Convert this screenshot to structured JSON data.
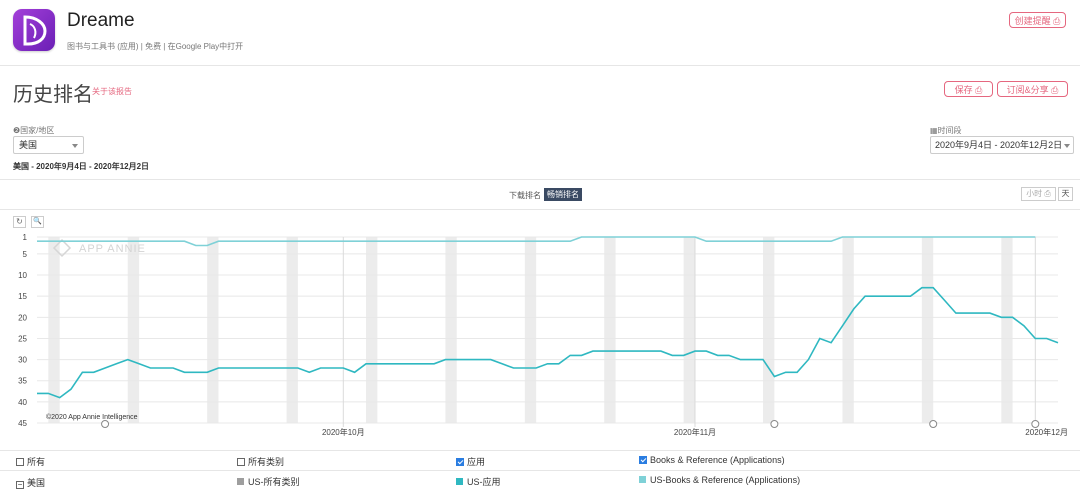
{
  "app": {
    "name": "Dreame",
    "meta": "图书与工具书 (应用) | 免费 | 在Google Play中打开",
    "create_alert_label": "创建提醒 ⎙"
  },
  "page": {
    "title": "历史排名",
    "about_label": "关于该报告",
    "save_label": "保存 ⎙",
    "subscribe_label": "订阅&分享 ⎙"
  },
  "filters": {
    "country_label": "❷国家/地区",
    "country_value": "美国",
    "period_label": "▦时间段",
    "period_value": "2020年9月4日 - 2020年12月2日",
    "summary": "美国 - 2020年9月4日 - 2020年12月2日"
  },
  "tabs": {
    "downloads": "下载排名",
    "grossing": "畅销排名"
  },
  "granularity": {
    "hour": "小时 ⎙",
    "day": "天"
  },
  "chart_tools": {
    "reset": "↻",
    "zoom": "🔍"
  },
  "watermark": "APP ANNIE",
  "copyright": "©2020 App Annie Intelligence",
  "chart_data": {
    "type": "line",
    "y_ticks": [
      "1",
      "5",
      "10",
      "15",
      "20",
      "25",
      "30",
      "35",
      "40",
      "45"
    ],
    "ylim": [
      1,
      45
    ],
    "y_reversed": true,
    "x_ticks": [
      {
        "label": "2020年10月",
        "day": 27
      },
      {
        "label": "2020年11月",
        "day": 58
      },
      {
        "label": "2020年12月",
        "day": 88
      }
    ],
    "x_domain": [
      0,
      88
    ],
    "weekend_bands": [
      [
        1,
        2
      ],
      [
        8,
        9
      ],
      [
        15,
        16
      ],
      [
        22,
        23
      ],
      [
        29,
        30
      ],
      [
        36,
        37
      ],
      [
        43,
        44
      ],
      [
        50,
        51
      ],
      [
        57,
        58
      ],
      [
        64,
        65
      ],
      [
        71,
        72
      ],
      [
        78,
        79
      ],
      [
        85,
        86
      ]
    ],
    "event_markers": [
      6,
      65,
      79,
      88
    ],
    "series": [
      {
        "name": "US-Books & Reference (Applications)",
        "color": "#7fd1d7",
        "values": [
          [
            0,
            2
          ],
          [
            13,
            2
          ],
          [
            14,
            3
          ],
          [
            15,
            3
          ],
          [
            16,
            2
          ],
          [
            47,
            2
          ],
          [
            48,
            1
          ],
          [
            58,
            1
          ],
          [
            59,
            2
          ],
          [
            70,
            2
          ],
          [
            71,
            1
          ],
          [
            88,
            1
          ]
        ]
      },
      {
        "name": "US-应用",
        "color": "#2fb8c1",
        "values": [
          [
            0,
            38
          ],
          [
            1,
            38
          ],
          [
            2,
            39
          ],
          [
            3,
            37
          ],
          [
            4,
            33
          ],
          [
            5,
            33
          ],
          [
            6,
            32
          ],
          [
            7,
            31
          ],
          [
            8,
            30
          ],
          [
            9,
            31
          ],
          [
            10,
            32
          ],
          [
            11,
            32
          ],
          [
            12,
            32
          ],
          [
            13,
            33
          ],
          [
            14,
            33
          ],
          [
            15,
            33
          ],
          [
            16,
            32
          ],
          [
            17,
            32
          ],
          [
            18,
            32
          ],
          [
            19,
            32
          ],
          [
            20,
            32
          ],
          [
            21,
            32
          ],
          [
            22,
            32
          ],
          [
            23,
            32
          ],
          [
            24,
            33
          ],
          [
            25,
            32
          ],
          [
            26,
            32
          ],
          [
            27,
            32
          ],
          [
            28,
            33
          ],
          [
            29,
            31
          ],
          [
            30,
            31
          ],
          [
            31,
            31
          ],
          [
            32,
            31
          ],
          [
            33,
            31
          ],
          [
            34,
            31
          ],
          [
            35,
            31
          ],
          [
            36,
            30
          ],
          [
            37,
            30
          ],
          [
            38,
            30
          ],
          [
            39,
            30
          ],
          [
            40,
            30
          ],
          [
            41,
            31
          ],
          [
            42,
            32
          ],
          [
            43,
            32
          ],
          [
            44,
            32
          ],
          [
            45,
            31
          ],
          [
            46,
            31
          ],
          [
            47,
            29
          ],
          [
            48,
            29
          ],
          [
            49,
            28
          ],
          [
            50,
            28
          ],
          [
            51,
            28
          ],
          [
            52,
            28
          ],
          [
            53,
            28
          ],
          [
            54,
            28
          ],
          [
            55,
            28
          ],
          [
            56,
            29
          ],
          [
            57,
            29
          ],
          [
            58,
            28
          ],
          [
            59,
            28
          ],
          [
            60,
            29
          ],
          [
            61,
            29
          ],
          [
            62,
            30
          ],
          [
            63,
            30
          ],
          [
            64,
            30
          ],
          [
            65,
            34
          ],
          [
            66,
            33
          ],
          [
            67,
            33
          ],
          [
            68,
            30
          ],
          [
            69,
            25
          ],
          [
            70,
            26
          ],
          [
            71,
            22
          ],
          [
            72,
            18
          ],
          [
            73,
            15
          ],
          [
            74,
            15
          ],
          [
            75,
            15
          ],
          [
            76,
            15
          ],
          [
            77,
            15
          ],
          [
            78,
            13
          ],
          [
            79,
            13
          ],
          [
            80,
            16
          ],
          [
            81,
            19
          ],
          [
            82,
            19
          ],
          [
            83,
            19
          ],
          [
            84,
            19
          ],
          [
            85,
            20
          ],
          [
            86,
            20
          ],
          [
            87,
            22
          ],
          [
            88,
            25
          ],
          [
            89,
            25
          ],
          [
            90,
            26
          ]
        ]
      }
    ]
  },
  "legend": {
    "all_label": "所有",
    "all_categories_label": "所有类别",
    "app_label": "应用",
    "books_label": "Books & Reference (Applications)",
    "country_row_label": "美国",
    "us_all_label": "US-所有类别",
    "us_app_label": "US-应用",
    "us_books_label": "US-Books & Reference (Applications)",
    "colors": {
      "us_all": "#9e9e9e",
      "us_app": "#2fb8c1",
      "us_books": "#7fd1d7"
    }
  }
}
